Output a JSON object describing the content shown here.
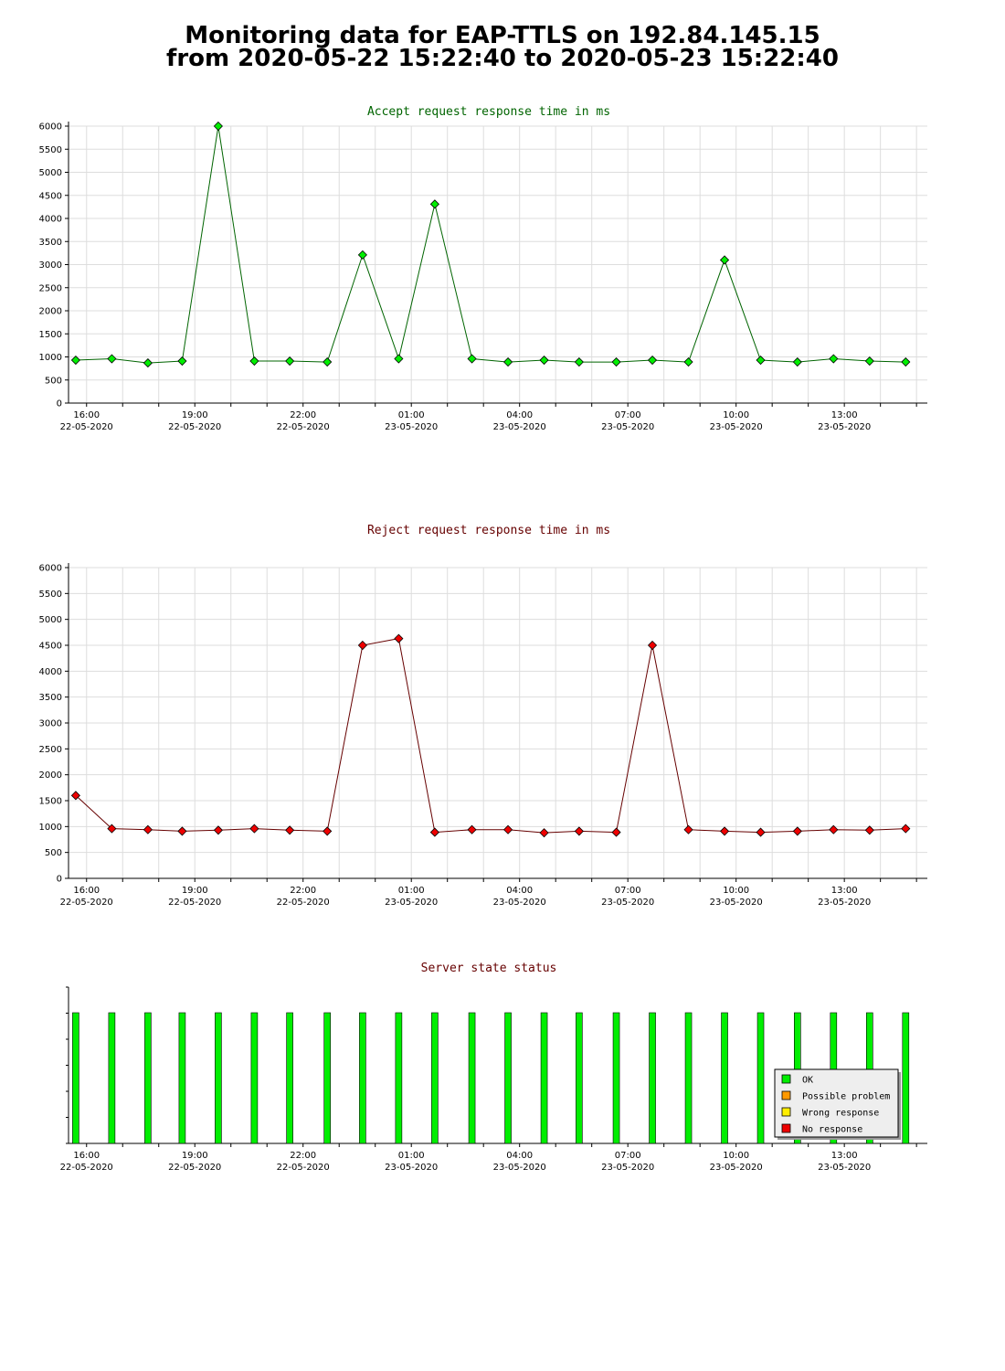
{
  "title": {
    "line1": "Monitoring data for EAP-TTLS on 192.84.145.15",
    "line2": "from 2020-05-22 15:22:40 to 2020-05-23 15:22:40"
  },
  "colors": {
    "accept_line": "#006400",
    "accept_marker": "#00ee00",
    "reject_line": "#660000",
    "reject_marker": "#ee0000",
    "ok": "#00ee00",
    "possible_problem": "#ff9900",
    "wrong_response": "#ffee00",
    "no_response": "#ee0000",
    "grid": "#dddddd"
  },
  "chart_data": [
    {
      "type": "line",
      "title": "Accept request response time in ms",
      "title_color": "#006400",
      "x_domain": [
        -0.5,
        23.3
      ],
      "ylim": [
        0,
        6000
      ],
      "yticks": [
        0,
        500,
        1000,
        1500,
        2000,
        2500,
        3000,
        3500,
        4000,
        4500,
        5000,
        5500,
        6000
      ],
      "x_label_ticks": [
        {
          "x": 0,
          "time": "16:00",
          "date": "22-05-2020"
        },
        {
          "x": 3,
          "time": "19:00",
          "date": "22-05-2020"
        },
        {
          "x": 6,
          "time": "22:00",
          "date": "22-05-2020"
        },
        {
          "x": 9,
          "time": "01:00",
          "date": "23-05-2020"
        },
        {
          "x": 12,
          "time": "04:00",
          "date": "23-05-2020"
        },
        {
          "x": 15,
          "time": "07:00",
          "date": "23-05-2020"
        },
        {
          "x": 18,
          "time": "10:00",
          "date": "23-05-2020"
        },
        {
          "x": 21,
          "time": "13:00",
          "date": "23-05-2020"
        }
      ],
      "grid": true,
      "series": [
        {
          "x": [
            -0.3,
            0.7,
            1.7,
            2.65,
            3.65,
            4.65,
            5.63,
            6.67,
            7.65,
            8.65,
            9.65,
            10.68,
            11.68,
            12.68,
            13.65,
            14.68,
            15.68,
            16.68,
            17.68,
            18.68,
            19.7,
            20.7,
            21.7,
            22.7
          ],
          "values": [
            930,
            960,
            870,
            910,
            6000,
            910,
            910,
            890,
            3210,
            960,
            4310,
            960,
            890,
            930,
            890,
            890,
            930,
            890,
            3100,
            930,
            890,
            960,
            910,
            890
          ]
        }
      ]
    },
    {
      "type": "line",
      "title": "Reject request response time in ms",
      "title_color": "#660000",
      "x_domain": [
        -0.5,
        23.3
      ],
      "ylim": [
        0,
        6000
      ],
      "yticks": [
        0,
        500,
        1000,
        1500,
        2000,
        2500,
        3000,
        3500,
        4000,
        4500,
        5000,
        5500,
        6000
      ],
      "x_label_ticks": [
        {
          "x": 0,
          "time": "16:00",
          "date": "22-05-2020"
        },
        {
          "x": 3,
          "time": "19:00",
          "date": "22-05-2020"
        },
        {
          "x": 6,
          "time": "22:00",
          "date": "22-05-2020"
        },
        {
          "x": 9,
          "time": "01:00",
          "date": "23-05-2020"
        },
        {
          "x": 12,
          "time": "04:00",
          "date": "23-05-2020"
        },
        {
          "x": 15,
          "time": "07:00",
          "date": "23-05-2020"
        },
        {
          "x": 18,
          "time": "10:00",
          "date": "23-05-2020"
        },
        {
          "x": 21,
          "time": "13:00",
          "date": "23-05-2020"
        }
      ],
      "grid": true,
      "series": [
        {
          "x": [
            -0.3,
            0.7,
            1.7,
            2.65,
            3.65,
            4.65,
            5.63,
            6.67,
            7.65,
            8.65,
            9.65,
            10.68,
            11.68,
            12.68,
            13.65,
            14.68,
            15.68,
            16.68,
            17.68,
            18.68,
            19.7,
            20.7,
            21.7,
            22.7
          ],
          "values": [
            1600,
            960,
            940,
            910,
            930,
            960,
            930,
            910,
            4500,
            4630,
            890,
            940,
            940,
            880,
            910,
            890,
            4500,
            940,
            910,
            890,
            910,
            940,
            930,
            960
          ]
        }
      ]
    },
    {
      "type": "bar",
      "title": "Server state status",
      "title_color": "#660000",
      "x_domain": [
        -0.5,
        23.3
      ],
      "x_label_ticks": [
        {
          "x": 0,
          "time": "16:00",
          "date": "22-05-2020"
        },
        {
          "x": 3,
          "time": "19:00",
          "date": "22-05-2020"
        },
        {
          "x": 6,
          "time": "22:00",
          "date": "22-05-2020"
        },
        {
          "x": 9,
          "time": "01:00",
          "date": "23-05-2020"
        },
        {
          "x": 12,
          "time": "04:00",
          "date": "23-05-2020"
        },
        {
          "x": 15,
          "time": "07:00",
          "date": "23-05-2020"
        },
        {
          "x": 18,
          "time": "10:00",
          "date": "23-05-2020"
        },
        {
          "x": 21,
          "time": "13:00",
          "date": "23-05-2020"
        }
      ],
      "x": [
        -0.3,
        0.7,
        1.7,
        2.65,
        3.65,
        4.65,
        5.63,
        6.67,
        7.65,
        8.65,
        9.65,
        10.68,
        11.68,
        12.68,
        13.65,
        14.68,
        15.68,
        16.68,
        17.68,
        18.68,
        19.7,
        20.7,
        21.7,
        22.7
      ],
      "status": [
        "OK",
        "OK",
        "OK",
        "OK",
        "OK",
        "OK",
        "OK",
        "OK",
        "OK",
        "OK",
        "OK",
        "OK",
        "OK",
        "OK",
        "OK",
        "OK",
        "OK",
        "OK",
        "OK",
        "OK",
        "OK",
        "OK",
        "OK",
        "OK"
      ],
      "legend": [
        {
          "label": "OK",
          "color": "#00ee00"
        },
        {
          "label": "Possible problem",
          "color": "#ff9900"
        },
        {
          "label": "Wrong response",
          "color": "#ffee00"
        },
        {
          "label": "No response",
          "color": "#ee0000"
        }
      ],
      "legend_position": "bottom-right"
    }
  ]
}
